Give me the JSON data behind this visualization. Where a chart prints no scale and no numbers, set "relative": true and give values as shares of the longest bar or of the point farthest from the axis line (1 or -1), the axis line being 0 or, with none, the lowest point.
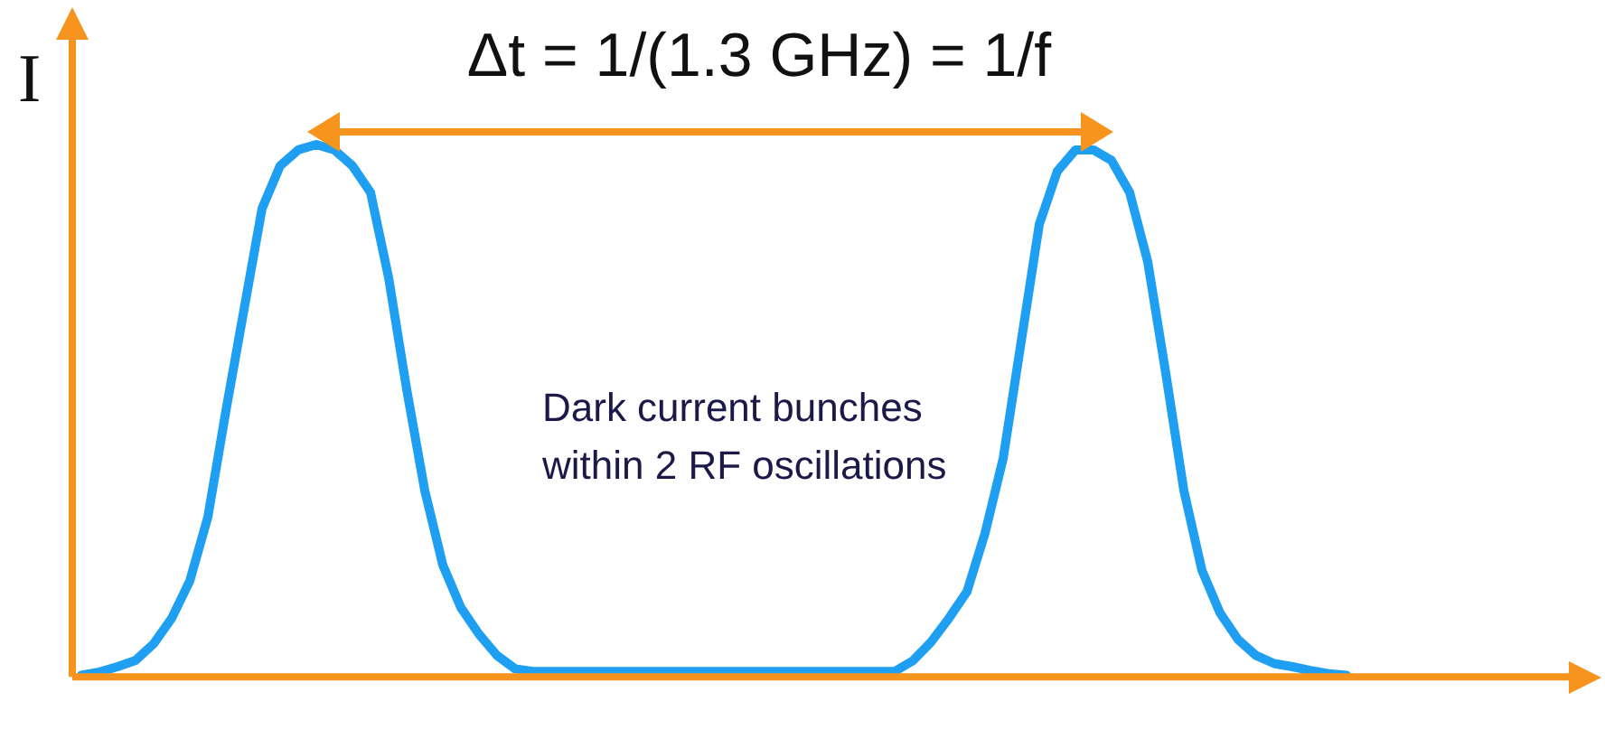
{
  "chart_data": {
    "type": "line",
    "title": "Δt = 1/(1.3 GHz) = 1/f",
    "ylabel": "I",
    "annotations": [
      "Dark current bunches\nwithin 2 RF oscillations"
    ],
    "categories": [
      null,
      null,
      null,
      null,
      null,
      null,
      null,
      null,
      null,
      null,
      null,
      null,
      null,
      null,
      null,
      null,
      null,
      null,
      null,
      null,
      null,
      null,
      null,
      null,
      null,
      null,
      null,
      null,
      null,
      null,
      null,
      null,
      null,
      null,
      null,
      null,
      null,
      null,
      null,
      null,
      null,
      null,
      null,
      null,
      null,
      null,
      null,
      null,
      null,
      null,
      null,
      null,
      null,
      null,
      null,
      null,
      null,
      null,
      null,
      null,
      null,
      null,
      null,
      null,
      null,
      null,
      null,
      null,
      null,
      null,
      null
    ],
    "series": [
      {
        "color": "#1e9ff2",
        "values": [
          0.003,
          0.009,
          0.019,
          0.031,
          0.062,
          0.11,
          0.18,
          0.3,
          0.5,
          0.69,
          0.88,
          0.96,
          0.99,
          1,
          0.99,
          0.96,
          0.91,
          0.75,
          0.54,
          0.35,
          0.21,
          0.13,
          0.08,
          0.04,
          0.015,
          0.01,
          0.01,
          0.01,
          0.01,
          0.01,
          0.01,
          0.01,
          0.01,
          0.01,
          0.01,
          0.01,
          0.01,
          0.01,
          0.01,
          0.01,
          0.01,
          0.01,
          0.01,
          0.01,
          0.01,
          0.01,
          0.03,
          0.065,
          0.11,
          0.16,
          0.27,
          0.41,
          0.63,
          0.85,
          0.95,
          0.99,
          0.99,
          0.97,
          0.91,
          0.78,
          0.57,
          0.35,
          0.2,
          0.12,
          0.07,
          0.04,
          0.025,
          0.019,
          0.012,
          0.006,
          0.003
        ]
      }
    ],
    "relative": true,
    "marker": "none",
    "line_style": "solid"
  }
}
